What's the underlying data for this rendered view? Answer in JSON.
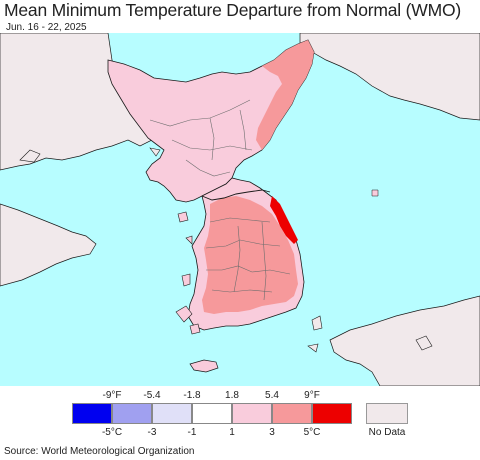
{
  "title": "Mean Minimum Temperature Departure from Normal (WMO)",
  "subtitle": "Jun. 16 - 22, 2025",
  "source": "Source: World Meteorological Organization",
  "colors": {
    "ocean": "#b7fdff",
    "land_outside": "#f1e9eb",
    "pink_light": "#f9ccdc",
    "salmon": "#f6999b",
    "red": "#ed0000",
    "border": "#6d6d6d",
    "coast": "#1a1a1a"
  },
  "legend": {
    "fahrenheit_labels": [
      "-9°F",
      "-5.4",
      "-1.8",
      "1.8",
      "5.4",
      "9°F"
    ],
    "celsius_labels": [
      "-5°C",
      "-3",
      "-1",
      "1",
      "3",
      "5°C"
    ],
    "colors": [
      "#0000f0",
      "#a0a0f0",
      "#e0e0f8",
      "#ffffff",
      "#f9ccdc",
      "#f6999b",
      "#ed0000"
    ],
    "no_data_label": "No Data",
    "no_data_color": "#f1e9eb"
  }
}
